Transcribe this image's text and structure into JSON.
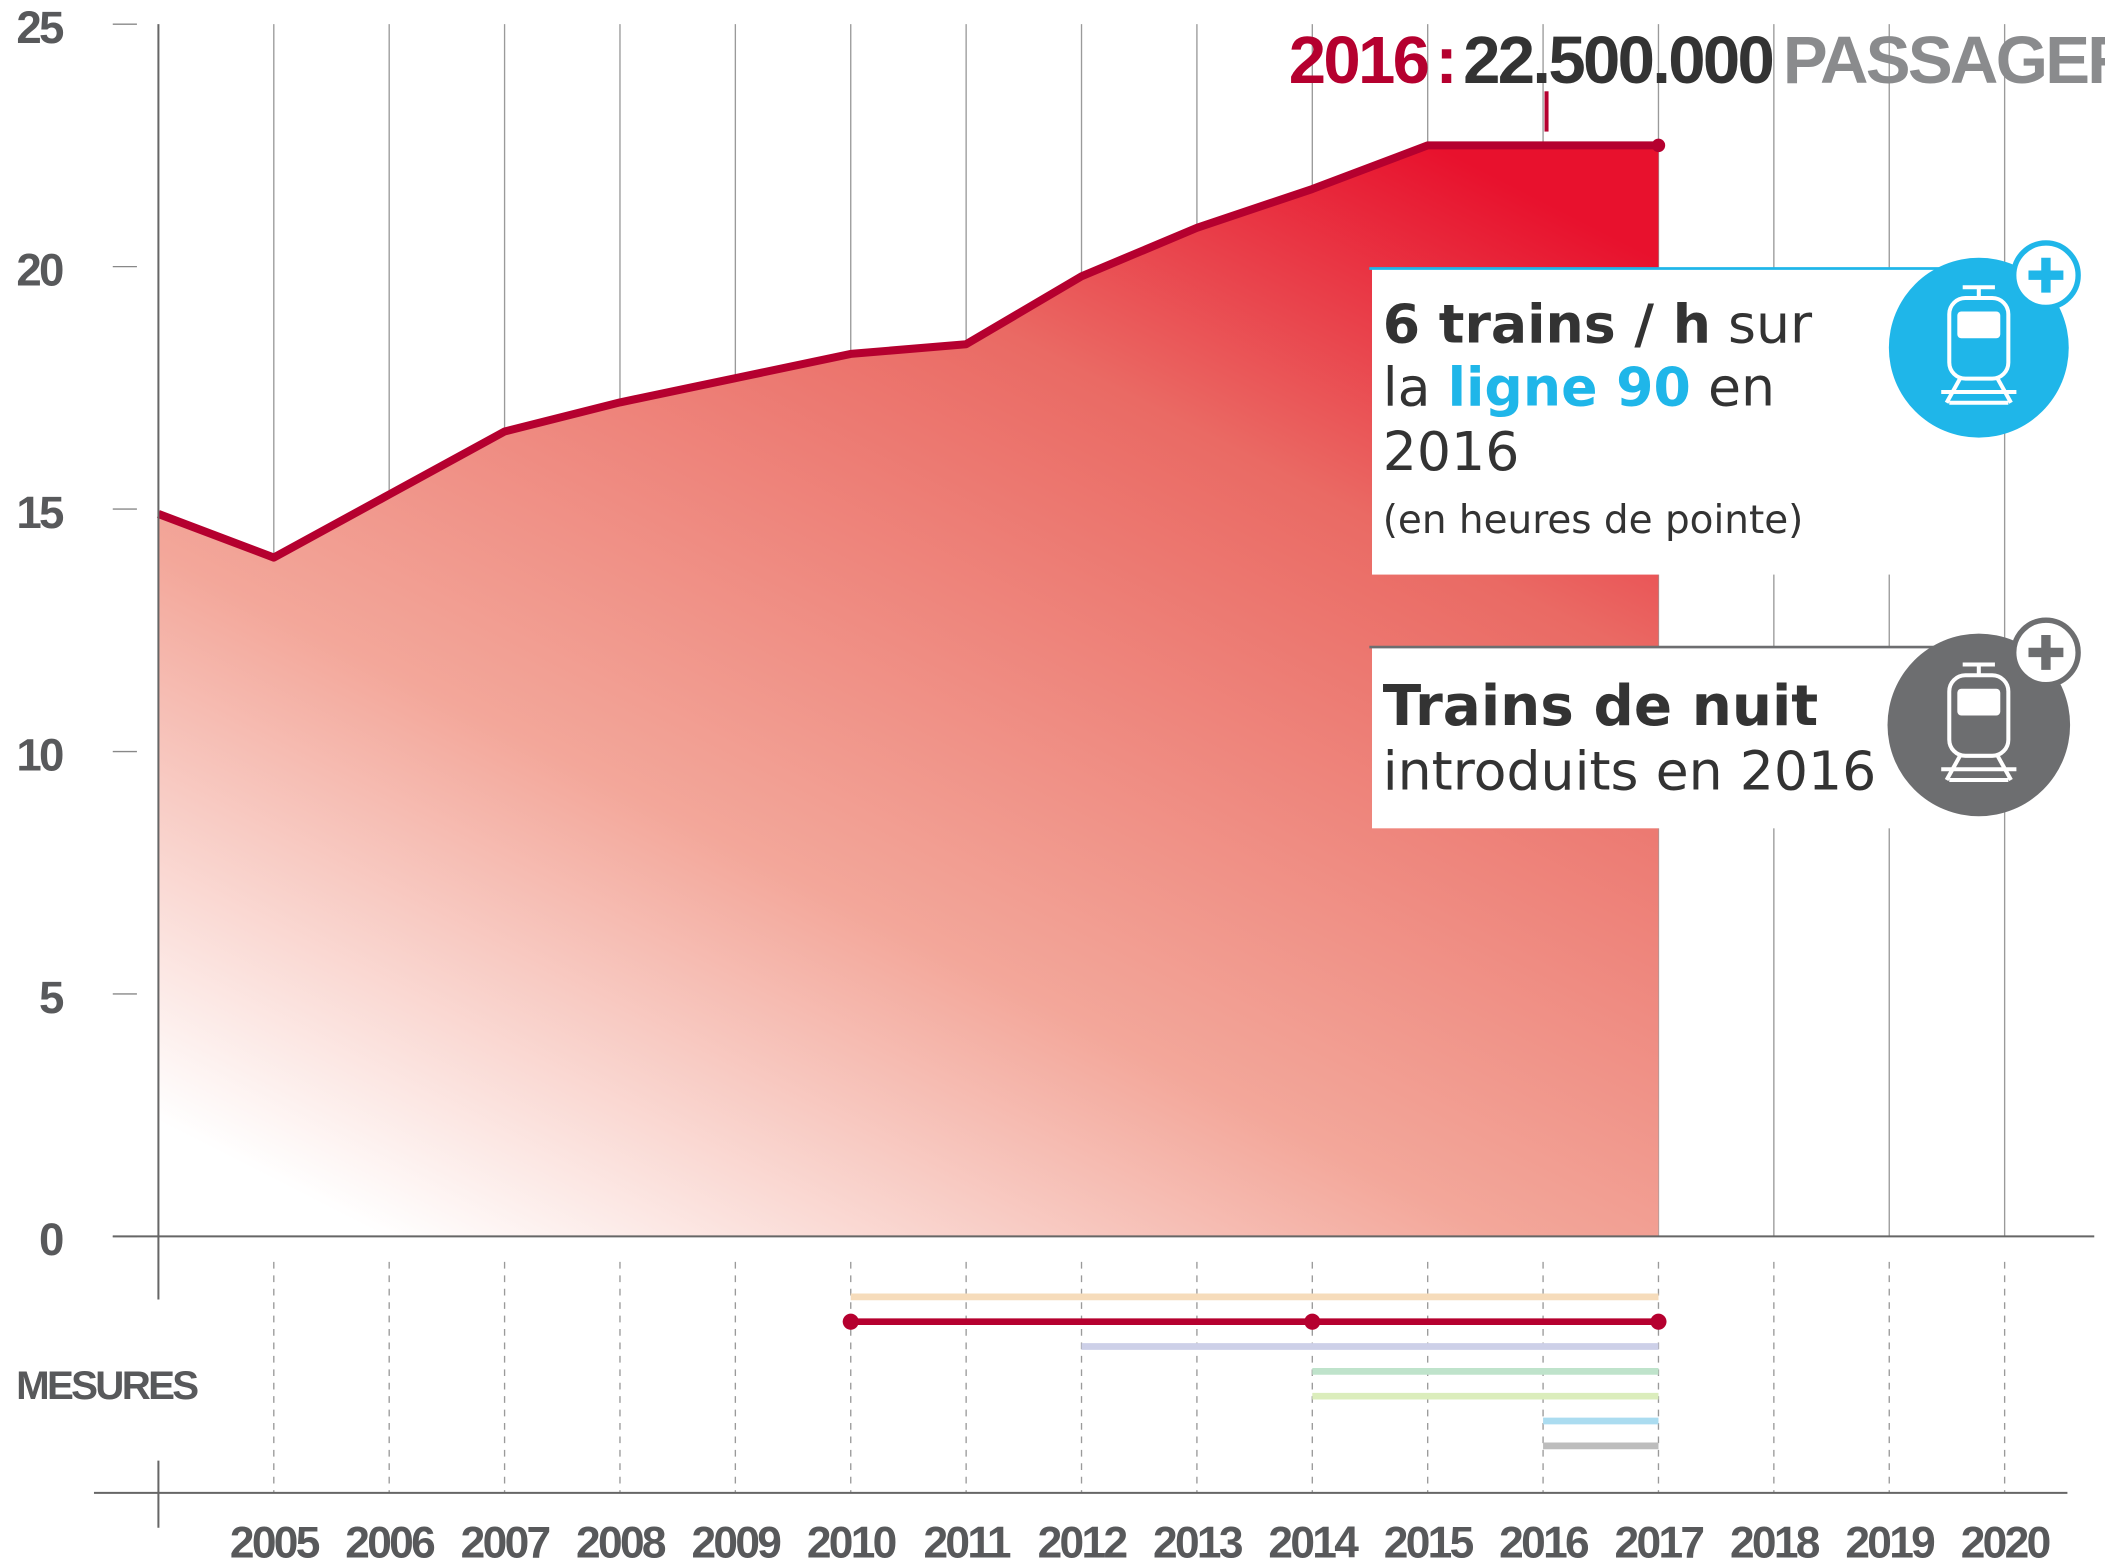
{
  "chart_data": {
    "type": "area",
    "title_parts": [
      "2016",
      ":",
      "22.500.000",
      "PASSAGERS"
    ],
    "x": [
      2004,
      2005,
      2006,
      2007,
      2008,
      2009,
      2010,
      2011,
      2012,
      2013,
      2014,
      2015,
      2016,
      2017
    ],
    "series": [
      {
        "color": "#b5002f",
        "values": [
          14.9,
          14.0,
          15.3,
          16.6,
          17.2,
          17.7,
          18.2,
          18.4,
          19.8,
          20.8,
          21.6,
          22.5,
          22.5,
          22.5
        ]
      }
    ],
    "xlim": [
      2004,
      2020.8
    ],
    "xticks": [
      2005,
      2006,
      2007,
      2008,
      2009,
      2010,
      2011,
      2012,
      2013,
      2014,
      2015,
      2016,
      2017,
      2018,
      2019,
      2020
    ],
    "ylim": [
      0,
      25
    ],
    "yticks": [
      0,
      5,
      10,
      15,
      20,
      25
    ],
    "measures_label": "MESURES",
    "measures": [
      {
        "color": "#f6dcbb",
        "start": 2010,
        "end": 2017
      },
      {
        "color": "#b5002f",
        "start": 2010,
        "end": 2017,
        "markers": [
          2010,
          2014,
          2017
        ]
      },
      {
        "color": "#cdd0e8",
        "start": 2012,
        "end": 2017
      },
      {
        "color": "#bfe3cb",
        "start": 2014,
        "end": 2017
      },
      {
        "color": "#dbedbc",
        "start": 2014,
        "end": 2017
      },
      {
        "color": "#abdcf0",
        "start": 2016,
        "end": 2017
      },
      {
        "color": "#bdbdbd",
        "start": 2016,
        "end": 2017
      }
    ],
    "callouts": [
      {
        "lines": [
          [
            "6  trains / h",
            " sur"
          ],
          [
            "la ",
            "ligne 90",
            " en"
          ],
          [
            "2016"
          ],
          [
            "(en heures de pointe)"
          ]
        ]
      },
      {
        "lines": [
          [
            "Trains de nuit"
          ],
          [
            "introduits en 2016"
          ]
        ]
      }
    ]
  }
}
